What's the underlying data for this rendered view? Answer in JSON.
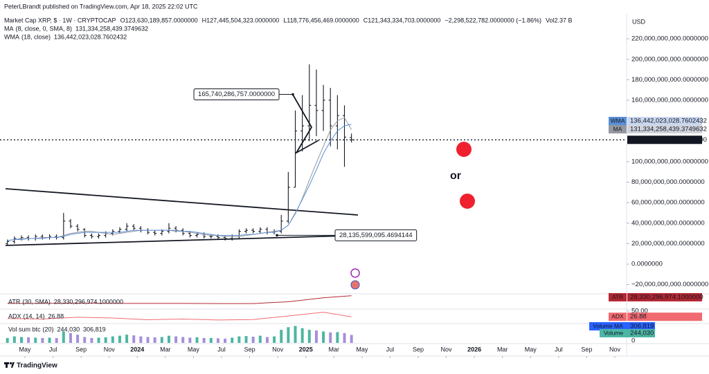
{
  "chart_data": [
    {
      "type": "ohlc",
      "publisher": "PeterLBrandt published on TradingView.com, Apr 18, 2025 22:02 UTC",
      "title": "Market Cap XRP, $ · 1W · CRYPTOCAP",
      "ohlc_legend": [
        "O123,630,189,857.0000000",
        "H127,445,504,323.0000000",
        "L118,776,456,469.0000000",
        "C121,343,334,703.0000000",
        "−2,298,522,782.0000000 (−1.86%)",
        "Vol2.37 B"
      ],
      "currency": "USD",
      "footer": "TradingView",
      "xlim": [
        2.47,
        46.84
      ],
      "xticks": [
        {
          "value": 4,
          "label": "May"
        },
        {
          "value": 6,
          "label": "Jul"
        },
        {
          "value": 8,
          "label": "Sep"
        },
        {
          "value": 10,
          "label": "Nov"
        },
        {
          "value": 12,
          "label": "2024"
        },
        {
          "value": 14,
          "label": "Mar"
        },
        {
          "value": 16,
          "label": "May"
        },
        {
          "value": 18,
          "label": "Jul"
        },
        {
          "value": 20,
          "label": "Sep"
        },
        {
          "value": 22,
          "label": "Nov"
        },
        {
          "value": 24,
          "label": "2025"
        },
        {
          "value": 26,
          "label": "Mar"
        },
        {
          "value": 28,
          "label": "May"
        },
        {
          "value": 30,
          "label": "Jul"
        },
        {
          "value": 32,
          "label": "Sep"
        },
        {
          "value": 34,
          "label": "Nov"
        },
        {
          "value": 36,
          "label": "2026"
        },
        {
          "value": 38,
          "label": "Mar"
        },
        {
          "value": 40,
          "label": "May"
        },
        {
          "value": 42,
          "label": "Jul"
        },
        {
          "value": 44,
          "label": "Sep"
        },
        {
          "value": 46,
          "label": "Nov"
        }
      ],
      "ylim": [
        -29000000000.0,
        241000000000.0
      ],
      "yticks": [
        {
          "value": 220000000000.0,
          "label": "220,000,000,000.0000000"
        },
        {
          "value": 200000000000.0,
          "label": "200,000,000,000.0000000"
        },
        {
          "value": 180000000000.0,
          "label": "180,000,000,000.0000000"
        },
        {
          "value": 160000000000.0,
          "label": "160,000,000,000.0000000"
        },
        {
          "value": 100000000000.0,
          "label": "100,000,000,000.0000000"
        },
        {
          "value": 80000000000.0,
          "label": "80,000,000,000.0000000"
        },
        {
          "value": 60000000000.0,
          "label": "60,000,000,000.0000000"
        },
        {
          "value": 40000000000.0,
          "label": "40,000,000,000.0000000"
        },
        {
          "value": 20000000000.0,
          "label": "20,000,000,000.0000000"
        },
        {
          "value": 0,
          "label": "0.0000000"
        },
        {
          "value": -20000000000.0,
          "label": "−20,000,000,000.0000000"
        }
      ],
      "grid": false,
      "color": "#131722",
      "x": [
        2.75,
        3.25,
        3.75,
        4.25,
        4.75,
        5.25,
        5.75,
        6.25,
        6.75,
        7.25,
        7.75,
        8.25,
        8.75,
        9.25,
        9.75,
        10.25,
        10.75,
        11.25,
        11.75,
        12.25,
        12.75,
        13.25,
        13.75,
        14.25,
        14.75,
        15.25,
        15.75,
        16.25,
        16.75,
        17.25,
        17.75,
        18.25,
        18.75,
        19.25,
        19.75,
        20.25,
        20.75,
        21.25,
        21.75,
        22.25,
        22.75,
        23.25,
        23.75,
        24.25,
        24.75,
        25.25,
        25.75,
        26.25,
        26.75,
        27.25
      ],
      "open": [
        20000000000.0,
        22000000000.0,
        25000000000.0,
        26000000000.0,
        25000000000.0,
        27000000000.0,
        26000000000.0,
        27000000000.0,
        26000000000.0,
        42000000000.0,
        37000000000.0,
        34000000000.0,
        28000000000.0,
        27000000000.0,
        28000000000.0,
        30000000000.0,
        32000000000.0,
        34000000000.0,
        37000000000.0,
        35000000000.0,
        33000000000.0,
        31000000000.0,
        30000000000.0,
        32000000000.0,
        35000000000.0,
        33000000000.0,
        30000000000.0,
        28000000000.0,
        29000000000.0,
        27000000000.0,
        27000000000.0,
        26000000000.0,
        25000000000.0,
        27000000000.0,
        32000000000.0,
        33000000000.0,
        32000000000.0,
        34000000000.0,
        31000000000.0,
        32000000000.0,
        42000000000.0,
        75000000000.0,
        130000000000.0,
        135000000000.0,
        155000000000.0,
        150000000000.0,
        160000000000.0,
        135000000000.0,
        145000000000.0,
        123630189857
      ],
      "high": [
        24000000000.0,
        27000000000.0,
        28000000000.0,
        28000000000.0,
        29000000000.0,
        29000000000.0,
        29000000000.0,
        29000000000.0,
        50000000000.0,
        44000000000.0,
        39000000000.0,
        35000000000.0,
        30000000000.0,
        30000000000.0,
        32000000000.0,
        34000000000.0,
        36000000000.0,
        40000000000.0,
        39000000000.0,
        37000000000.0,
        35000000000.0,
        33000000000.0,
        34000000000.0,
        40000000000.0,
        37000000000.0,
        35000000000.0,
        32000000000.0,
        31000000000.0,
        31000000000.0,
        29000000000.0,
        29000000000.0,
        28000000000.0,
        29000000000.0,
        34000000000.0,
        35000000000.0,
        35000000000.0,
        36000000000.0,
        36000000000.0,
        34000000000.0,
        48000000000.0,
        90000000000.0,
        150000000000.0,
        165000000000.0,
        195000000000.0,
        190000000000.0,
        175000000000.0,
        172000000000.0,
        165000000000.0,
        155000000000.0,
        127445504323
      ],
      "low": [
        18000000000.0,
        20000000000.0,
        23000000000.0,
        23000000000.0,
        23000000000.0,
        24000000000.0,
        24000000000.0,
        24000000000.0,
        24000000000.0,
        35000000000.0,
        32000000000.0,
        26000000000.0,
        25000000000.0,
        25000000000.0,
        26000000000.0,
        28000000000.0,
        30000000000.0,
        32000000000.0,
        33000000000.0,
        31000000000.0,
        29000000000.0,
        28000000000.0,
        28000000000.0,
        30000000000.0,
        31000000000.0,
        28000000000.0,
        26000000000.0,
        26000000000.0,
        25000000000.0,
        25000000000.0,
        24000000000.0,
        23000000000.0,
        23000000000.0,
        25000000000.0,
        30000000000.0,
        30000000000.0,
        30000000000.0,
        29000000000.0,
        29000000000.0,
        30000000000.0,
        40000000000.0,
        75000000000.0,
        110000000000.0,
        120000000000.0,
        125000000000.0,
        130000000000.0,
        115000000000.0,
        112000000000.0,
        95000000000.0,
        118776456469
      ],
      "close": [
        22000000000.0,
        25000000000.0,
        26000000000.0,
        25000000000.0,
        27000000000.0,
        26000000000.0,
        27000000000.0,
        26000000000.0,
        42000000000.0,
        37000000000.0,
        34000000000.0,
        28000000000.0,
        27000000000.0,
        28000000000.0,
        30000000000.0,
        32000000000.0,
        34000000000.0,
        37000000000.0,
        35000000000.0,
        33000000000.0,
        31000000000.0,
        30000000000.0,
        32000000000.0,
        35000000000.0,
        33000000000.0,
        30000000000.0,
        28000000000.0,
        29000000000.0,
        27000000000.0,
        27000000000.0,
        26000000000.0,
        25000000000.0,
        27000000000.0,
        32000000000.0,
        33000000000.0,
        32000000000.0,
        34000000000.0,
        31000000000.0,
        32000000000.0,
        42000000000.0,
        75000000000.0,
        130000000000.0,
        135000000000.0,
        155000000000.0,
        150000000000.0,
        160000000000.0,
        135000000000.0,
        145000000000.0,
        124000000000.0,
        121343334703
      ],
      "close_label": "121,343,334,703.0000000",
      "series": [
        {
          "name": "MA",
          "params": "(8, close, 0, SMA, 8)",
          "color": "#9598a1",
          "values": [
            23000000000.0,
            24000000000.0,
            25000000000.0,
            25000000000.0,
            25000000000.0,
            26000000000.0,
            26000000000.0,
            26000000000.0,
            28000000000.0,
            30000000000.0,
            31000000000.0,
            32000000000.0,
            32000000000.0,
            31000000000.0,
            30000000000.0,
            29000000000.0,
            30000000000.0,
            31000000000.0,
            32000000000.0,
            33000000000.0,
            33000000000.0,
            33000000000.0,
            33000000000.0,
            33000000000.0,
            32000000000.0,
            32000000000.0,
            31000000000.0,
            30000000000.0,
            29000000000.0,
            28000000000.0,
            28000000000.0,
            27000000000.0,
            27000000000.0,
            27000000000.0,
            28000000000.0,
            29000000000.0,
            30000000000.0,
            31000000000.0,
            32000000000.0,
            33000000000.0,
            38000000000.0,
            49000000000.0,
            64000000000.0,
            82000000000.0,
            99000000000.0,
            115000000000.0,
            131000000000.0,
            140000000000.0,
            143000000000.0,
            131334258439.37497
          ],
          "last_label": "131,334,258,439.3749632"
        },
        {
          "name": "WMA",
          "params": "(18, close)",
          "color": "#5b8fd6",
          "values": [
            23000000000.0,
            24000000000.0,
            24000000000.0,
            25000000000.0,
            25000000000.0,
            25000000000.0,
            26000000000.0,
            26000000000.0,
            27000000000.0,
            29000000000.0,
            30000000000.0,
            31000000000.0,
            31000000000.0,
            31000000000.0,
            31000000000.0,
            31000000000.0,
            31000000000.0,
            32000000000.0,
            33000000000.0,
            33000000000.0,
            33000000000.0,
            33000000000.0,
            33000000000.0,
            33000000000.0,
            33000000000.0,
            32000000000.0,
            32000000000.0,
            31000000000.0,
            30000000000.0,
            29000000000.0,
            28000000000.0,
            28000000000.0,
            28000000000.0,
            28000000000.0,
            29000000000.0,
            29000000000.0,
            30000000000.0,
            31000000000.0,
            31000000000.0,
            33000000000.0,
            38000000000.0,
            50000000000.0,
            63000000000.0,
            77000000000.0,
            92000000000.0,
            108000000000.0,
            120000000000.0,
            130000000000.0,
            135000000000.0,
            136442023028.76024
          ],
          "last_label": "136,442,023,028.7602432"
        }
      ],
      "annotations": [
        {
          "value": 165740286757,
          "label": "165,740,286,757.0000000"
        },
        {
          "value": 28135599095.469414,
          "label": "28,135,599,095.4694144"
        }
      ],
      "note": "or"
    },
    {
      "type": "line",
      "name": "ATR",
      "params": "(30, SMA)",
      "color": "#b22833",
      "x": [
        2.75,
        5.25,
        7.75,
        10.25,
        12.75,
        15.25,
        17.75,
        20.25,
        22.75,
        25.25,
        27.25
      ],
      "values": [
        5000000000.0,
        5000000000.0,
        6000000000.0,
        5000000000.0,
        5000000000.0,
        5000000000.0,
        4500000000.0,
        4500000000.0,
        10000000000.0,
        22000000000.0,
        28330296974.1
      ],
      "last_label": "28,330,296,974.1000000",
      "ylim": [
        -12000000000.0,
        30000000000.0
      ]
    },
    {
      "type": "line",
      "name": "ADX",
      "params": "(14, 14)",
      "color": "#f06a70",
      "x": [
        2.75,
        5.25,
        7.75,
        10.25,
        12.75,
        15.25,
        17.75,
        20.25,
        22.75,
        25.25,
        27.25
      ],
      "values": [
        20,
        18,
        25,
        22,
        15,
        18,
        14,
        16,
        30,
        45,
        26.88
      ],
      "ylim": [
        0,
        55
      ],
      "yticks": [
        {
          "value": 50,
          "label": "50.00"
        }
      ]
    },
    {
      "type": "volume",
      "name": "Vol sum btc",
      "params": "(20)",
      "up_color": "#4db6a4",
      "down_color": "#a48fdb",
      "ma_color": "#2962ff",
      "x": [
        2.75,
        3.25,
        3.75,
        4.25,
        4.75,
        5.25,
        5.75,
        6.25,
        6.75,
        7.25,
        7.75,
        8.25,
        8.75,
        9.25,
        9.75,
        10.25,
        10.75,
        11.25,
        11.75,
        12.25,
        12.75,
        13.25,
        13.75,
        14.25,
        14.75,
        15.25,
        15.75,
        16.25,
        16.75,
        17.25,
        17.75,
        18.25,
        18.75,
        19.25,
        19.75,
        20.25,
        20.75,
        21.25,
        21.75,
        22.25,
        22.75,
        23.25,
        23.75,
        24.25,
        24.75,
        25.25,
        25.75,
        26.25,
        26.75,
        27.25
      ],
      "values": [
        150000,
        200000,
        180000,
        170000,
        160000,
        150000,
        160000,
        150000,
        350000,
        300000,
        250000,
        180000,
        150000,
        160000,
        170000,
        200000,
        220000,
        250000,
        230000,
        200000,
        180000,
        170000,
        180000,
        220000,
        200000,
        180000,
        160000,
        170000,
        150000,
        150000,
        140000,
        130000,
        160000,
        200000,
        210000,
        190000,
        220000,
        180000,
        200000,
        400000,
        480000,
        520000,
        450000,
        400000,
        380000,
        350000,
        320000,
        330000,
        300000,
        244030
      ],
      "last_label": "244,030",
      "label": "Volume",
      "ma_name": "Volume MA",
      "ma_value": 306819,
      "ma_label": "306,819",
      "ylim": [
        0,
        550000
      ],
      "yticks": [
        0
      ]
    }
  ]
}
